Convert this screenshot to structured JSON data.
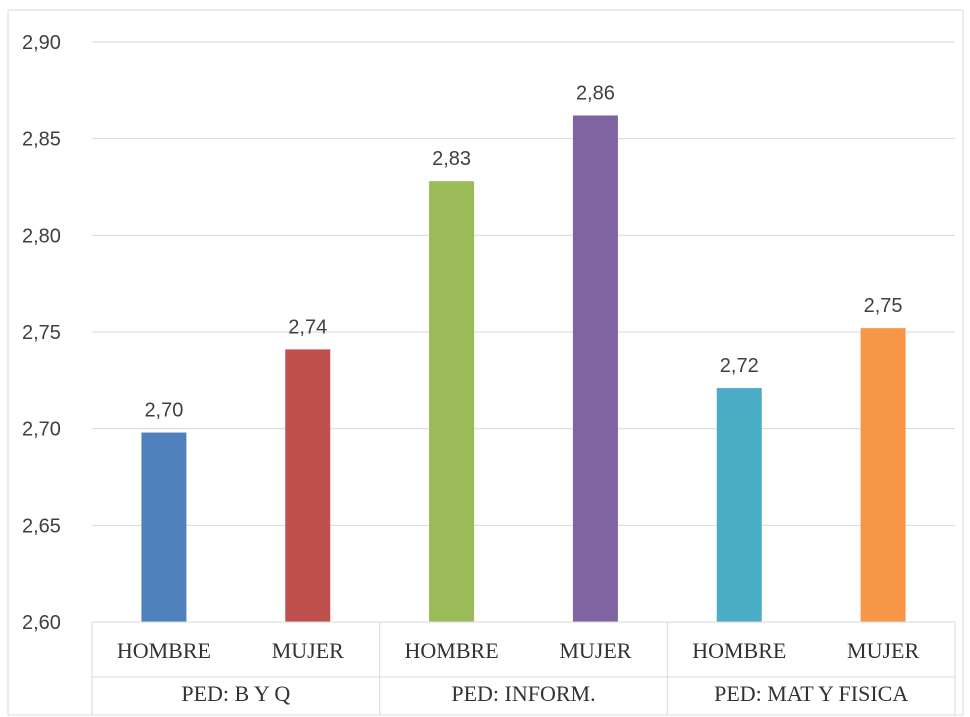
{
  "chart_data": {
    "type": "bar",
    "title": "",
    "xlabel": "",
    "ylabel": "",
    "ylim": [
      2.6,
      2.9
    ],
    "yticks": [
      2.6,
      2.65,
      2.7,
      2.75,
      2.8,
      2.85,
      2.9
    ],
    "ytick_labels": [
      "2,60",
      "2,65",
      "2,70",
      "2,75",
      "2,80",
      "2,85",
      "2,90"
    ],
    "grid": true,
    "legend": "none",
    "groups": [
      "PED: B Y Q",
      "PED: INFORM.",
      "PED: MAT  Y FISICA"
    ],
    "categories": [
      "HOMBRE",
      "MUJER",
      "HOMBRE",
      "MUJER",
      "HOMBRE",
      "MUJER"
    ],
    "values": [
      2.698,
      2.741,
      2.828,
      2.862,
      2.721,
      2.752
    ],
    "value_labels": [
      "2,70",
      "2,74",
      "2,83",
      "2,86",
      "2,72",
      "2,75"
    ],
    "colors": [
      "#4F81BD",
      "#C0504D",
      "#9BBB59",
      "#8064A2",
      "#4BACC6",
      "#F79646"
    ]
  }
}
